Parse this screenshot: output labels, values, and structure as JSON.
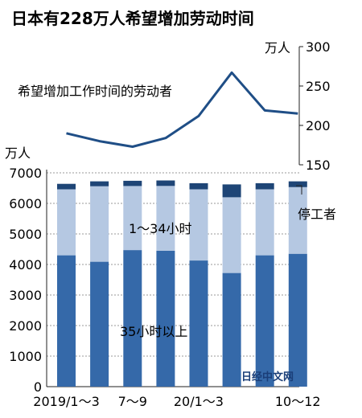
{
  "chart_data": [
    {
      "type": "line",
      "title": "日本有228万人希望增加劳动时间",
      "annotation": "希望增加工作时间的劳动者",
      "unit": "万人",
      "ylim": [
        150,
        300
      ],
      "yticks": [
        150,
        200,
        250,
        300
      ],
      "values": [
        190,
        180,
        173,
        184,
        212,
        267,
        219,
        215
      ],
      "color": "#1f4e86",
      "grid": false
    },
    {
      "type": "bar",
      "stacked": true,
      "unit": "万人",
      "xticks": [
        "2019/1～3",
        "7～9",
        "20/1～3",
        "10～12"
      ],
      "ylim": [
        0,
        7000
      ],
      "yticks": [
        0,
        1000,
        2000,
        3000,
        4000,
        5000,
        6000,
        7000
      ],
      "series": [
        {
          "name": "35小时以上",
          "color": "#3569a9",
          "values": [
            4300,
            4090,
            4470,
            4450,
            4130,
            3720,
            4300,
            4350
          ]
        },
        {
          "name": "1～34小时",
          "color": "#b5c8e2",
          "values": [
            2160,
            2470,
            2100,
            2120,
            2330,
            2480,
            2160,
            2180
          ]
        },
        {
          "name": "停工者",
          "color": "#1e4576",
          "values": [
            180,
            160,
            170,
            180,
            200,
            420,
            200,
            190
          ]
        }
      ],
      "grid": true
    }
  ],
  "watermark": "日经中文网"
}
